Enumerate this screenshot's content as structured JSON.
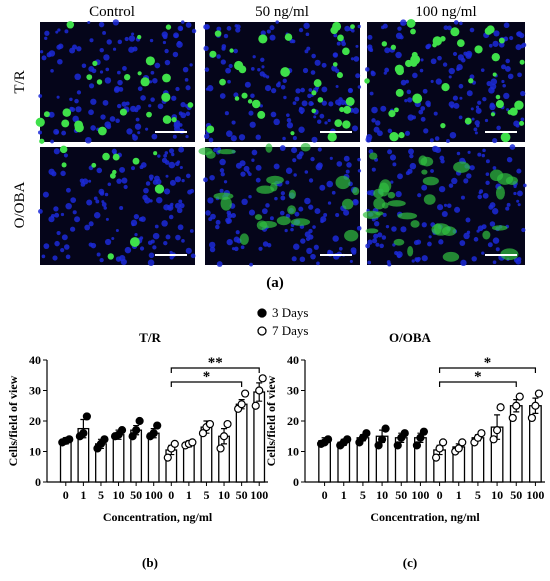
{
  "figure": {
    "columns": [
      "Control",
      "50 ng/ml",
      "100 ng/ml"
    ],
    "rows": [
      "T/R",
      "O/OBA"
    ],
    "label": "(a)"
  },
  "chart_data": [
    {
      "type": "bar",
      "title": "T/R",
      "panel_label": "(b)",
      "xlabel": "Concentration, ng/ml",
      "ylabel": "Cells/field of view",
      "categories": [
        "0",
        "1",
        "5",
        "10",
        "50",
        "100",
        "0",
        "1",
        "5",
        "10",
        "50",
        "100"
      ],
      "ylim": [
        0,
        40
      ],
      "yticks": [
        0,
        10,
        20,
        30,
        40
      ],
      "color": "#ffffff",
      "series": [
        {
          "name": "3 Days",
          "marker": "filled",
          "values": [
            13.5,
            17.5,
            12.5,
            15.5,
            17,
            16,
            null,
            null,
            null,
            null,
            null,
            null
          ],
          "errors": [
            1,
            3,
            1.5,
            1.5,
            1.5,
            1.5,
            null,
            null,
            null,
            null,
            null,
            null
          ],
          "points": [
            [
              13,
              13.5,
              14
            ],
            [
              15,
              16,
              21.5
            ],
            [
              11,
              12.5,
              14
            ],
            [
              15,
              15.5,
              17
            ],
            [
              15,
              17,
              20
            ],
            [
              15,
              16,
              18.5
            ],
            null,
            null,
            null,
            null,
            null,
            null
          ]
        },
        {
          "name": "7 Days",
          "marker": "open",
          "values": [
            null,
            null,
            null,
            null,
            null,
            null,
            10.5,
            12.5,
            18,
            15,
            25.5,
            29.5
          ],
          "errors": [
            null,
            null,
            null,
            null,
            null,
            null,
            1.5,
            1,
            2,
            2.5,
            1.5,
            3
          ],
          "points": [
            null,
            null,
            null,
            null,
            null,
            null,
            [
              8,
              11,
              12.5
            ],
            [
              12,
              12.5,
              13
            ],
            [
              16,
              18,
              19
            ],
            [
              11,
              15,
              19
            ],
            [
              24,
              25.5,
              29
            ],
            [
              25,
              30,
              34
            ]
          ]
        }
      ],
      "comparisons": [
        {
          "label": "**",
          "categories": [
            6,
            11
          ]
        },
        {
          "label": "*",
          "categories": [
            6,
            10
          ]
        }
      ]
    },
    {
      "type": "bar",
      "title": "O/OBA",
      "panel_label": "(c)",
      "xlabel": "Concentration, ng/ml",
      "ylabel": "Cells/field of view",
      "categories": [
        "0",
        "1",
        "5",
        "10",
        "50",
        "100",
        "0",
        "1",
        "5",
        "10",
        "50",
        "100"
      ],
      "ylim": [
        0,
        40
      ],
      "yticks": [
        0,
        10,
        20,
        30,
        40
      ],
      "color": "#ffffff",
      "series": [
        {
          "marker": "filled",
          "values": [
            13.5,
            13,
            14.5,
            15,
            14.5,
            14.5,
            null,
            null,
            null,
            null,
            null,
            null
          ],
          "errors": [
            1,
            1,
            1,
            2,
            1.5,
            1.5,
            null,
            null,
            null,
            null,
            null,
            null
          ],
          "points": [
            [
              12.5,
              13,
              14
            ],
            [
              12,
              13,
              14
            ],
            [
              13,
              14.5,
              16
            ],
            [
              12,
              14,
              17.5
            ],
            [
              12,
              14.5,
              16
            ],
            [
              12,
              14.5,
              16.5
            ],
            null,
            null,
            null,
            null,
            null,
            null
          ]
        },
        {
          "marker": "open",
          "values": [
            null,
            null,
            null,
            null,
            null,
            null,
            10.5,
            11.5,
            14.5,
            18,
            25,
            25
          ],
          "errors": [
            null,
            null,
            null,
            null,
            null,
            null,
            1.5,
            1,
            1,
            4,
            2,
            2.5
          ],
          "points": [
            null,
            null,
            null,
            null,
            null,
            null,
            [
              8,
              11,
              13
            ],
            [
              10,
              11,
              13
            ],
            [
              13,
              14.5,
              16
            ],
            [
              14,
              17,
              24.5
            ],
            [
              21,
              25,
              28
            ],
            [
              21,
              25,
              29
            ]
          ]
        }
      ],
      "comparisons": [
        {
          "label": "*",
          "categories": [
            6,
            11
          ]
        },
        {
          "label": "*",
          "categories": [
            6,
            10
          ]
        }
      ]
    }
  ]
}
